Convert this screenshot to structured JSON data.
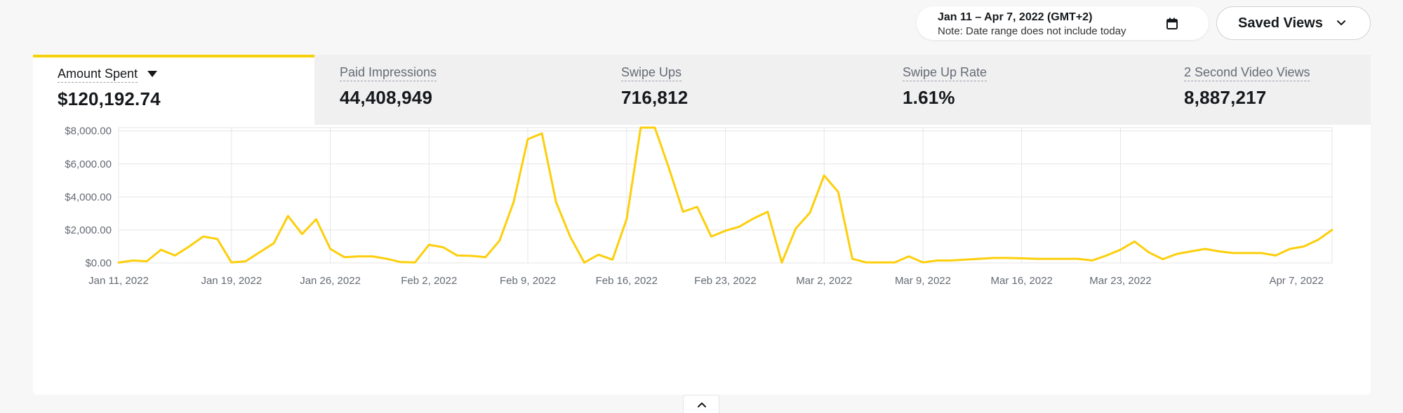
{
  "date_range": {
    "label": "Jan 11 – Apr 7, 2022 (GMT+2)",
    "note": "Note: Date range does not include today",
    "icon": "calendar-icon"
  },
  "saved_views": {
    "label": "Saved Views",
    "icon": "chevron-down-icon"
  },
  "metrics": [
    {
      "label": "Amount Spent",
      "value": "$120,192.74",
      "active": true
    },
    {
      "label": "Paid Impressions",
      "value": "44,408,949",
      "active": false
    },
    {
      "label": "Swipe Ups",
      "value": "716,812",
      "active": false
    },
    {
      "label": "Swipe Up Rate",
      "value": "1.61%",
      "active": false
    },
    {
      "label": "2 Second Video Views",
      "value": "8,887,217",
      "active": false
    }
  ],
  "colors": {
    "accent": "#f5d20a",
    "line": "#fccf0c",
    "grid": "#e4e5e7"
  },
  "chart_data": {
    "type": "line",
    "grid": true,
    "ylim": [
      0,
      8200
    ],
    "y_ticks": [
      0,
      2000,
      4000,
      6000,
      8000
    ],
    "y_tick_labels": [
      "$0.00",
      "$2,000.00",
      "$4,000.00",
      "$6,000.00",
      "$8,000.00"
    ],
    "x_tick_labels": [
      {
        "label": "Jan 11, 2022",
        "x": "2022-01-11"
      },
      {
        "label": "Jan 19, 2022",
        "x": "2022-01-19"
      },
      {
        "label": "Jan 26, 2022",
        "x": "2022-01-26"
      },
      {
        "label": "Feb 2, 2022",
        "x": "2022-02-02"
      },
      {
        "label": "Feb 9, 2022",
        "x": "2022-02-09"
      },
      {
        "label": "Feb 16, 2022",
        "x": "2022-02-16"
      },
      {
        "label": "Feb 23, 2022",
        "x": "2022-02-23"
      },
      {
        "label": "Mar 2, 2022",
        "x": "2022-03-02"
      },
      {
        "label": "Mar 9, 2022",
        "x": "2022-03-09"
      },
      {
        "label": "Mar 16, 2022",
        "x": "2022-03-16"
      },
      {
        "label": "Mar 23, 2022",
        "x": "2022-03-23"
      },
      {
        "label": "Apr 7, 2022",
        "x": "2022-04-07"
      }
    ],
    "series": [
      {
        "x_start": "2022-01-11",
        "x_end": "2022-04-07",
        "values": [
          20,
          150,
          100,
          800,
          450,
          1000,
          1600,
          1450,
          30,
          100,
          650,
          1200,
          2850,
          1750,
          2650,
          850,
          350,
          400,
          400,
          250,
          50,
          30,
          1100,
          950,
          450,
          430,
          350,
          1350,
          3700,
          7500,
          7850,
          3700,
          1600,
          20,
          500,
          200,
          2650,
          8200,
          8200,
          5750,
          3100,
          3400,
          1600,
          1950,
          2200,
          2700,
          3100,
          20,
          2100,
          3050,
          5300,
          4300,
          250,
          30,
          30,
          30,
          400,
          30,
          150,
          150,
          200,
          250,
          300,
          300,
          280,
          250,
          250,
          250,
          250,
          150,
          450,
          800,
          1300,
          650,
          230,
          550,
          700,
          850,
          700,
          600,
          600,
          600,
          450,
          850,
          1000,
          1400,
          2000
        ]
      }
    ]
  }
}
